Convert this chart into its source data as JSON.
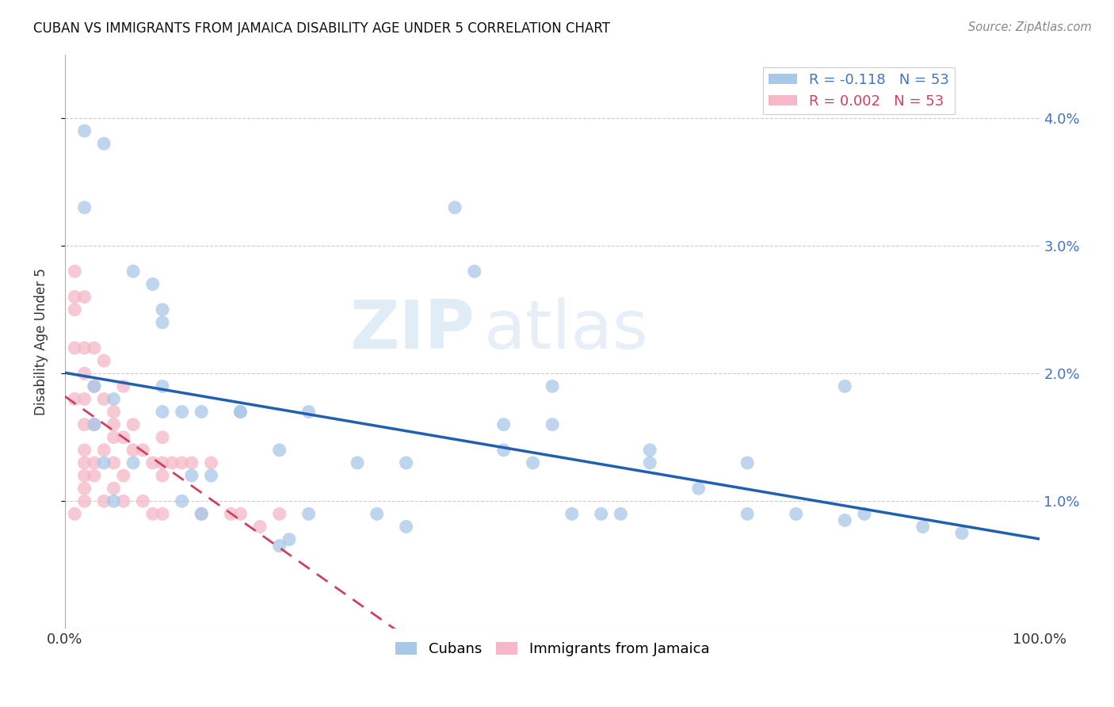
{
  "title": "CUBAN VS IMMIGRANTS FROM JAMAICA DISABILITY AGE UNDER 5 CORRELATION CHART",
  "source": "Source: ZipAtlas.com",
  "ylabel": "Disability Age Under 5",
  "xlim": [
    0,
    100
  ],
  "ylim": [
    0,
    0.045
  ],
  "ytick_vals": [
    0.01,
    0.02,
    0.03,
    0.04
  ],
  "ytick_labels": [
    "1.0%",
    "2.0%",
    "3.0%",
    "4.0%"
  ],
  "xtick_vals": [
    0,
    100
  ],
  "xtick_labels": [
    "0.0%",
    "100.0%"
  ],
  "watermark_zip": "ZIP",
  "watermark_atlas": "atlas",
  "legend1_label": "R = -0.118   N = 53",
  "legend2_label": "R = 0.002   N = 53",
  "legend_series1": "Cubans",
  "legend_series2": "Immigrants from Jamaica",
  "blue_color": "#a8c8e8",
  "pink_color": "#f4b8c8",
  "trendline_blue": "#2060b0",
  "trendline_pink": "#d04060",
  "cubans_x": [
    2,
    2,
    4,
    9,
    10,
    10,
    10,
    12,
    13,
    14,
    15,
    18,
    22,
    23,
    25,
    30,
    32,
    35,
    40,
    42,
    45,
    48,
    50,
    52,
    55,
    57,
    60,
    65,
    70,
    75,
    80,
    82,
    88,
    92,
    3,
    3,
    4,
    5,
    5,
    7,
    7,
    10,
    12,
    14,
    18,
    22,
    25,
    35,
    45,
    50,
    60,
    70,
    80
  ],
  "cubans_y": [
    0.039,
    0.033,
    0.038,
    0.027,
    0.025,
    0.019,
    0.017,
    0.017,
    0.012,
    0.009,
    0.012,
    0.017,
    0.014,
    0.007,
    0.009,
    0.013,
    0.009,
    0.008,
    0.033,
    0.028,
    0.014,
    0.013,
    0.016,
    0.009,
    0.009,
    0.009,
    0.014,
    0.011,
    0.013,
    0.009,
    0.019,
    0.009,
    0.008,
    0.0075,
    0.019,
    0.016,
    0.013,
    0.018,
    0.01,
    0.028,
    0.013,
    0.024,
    0.01,
    0.017,
    0.017,
    0.0065,
    0.017,
    0.013,
    0.016,
    0.019,
    0.013,
    0.009,
    0.0085
  ],
  "jamaica_x": [
    1,
    1,
    1,
    1,
    1,
    1,
    2,
    2,
    2,
    2,
    2,
    2,
    2,
    2,
    2,
    2,
    3,
    3,
    3,
    3,
    3,
    4,
    4,
    4,
    4,
    5,
    5,
    5,
    5,
    5,
    6,
    6,
    6,
    6,
    7,
    7,
    8,
    8,
    9,
    9,
    10,
    10,
    10,
    10,
    11,
    12,
    13,
    14,
    15,
    17,
    18,
    20,
    22
  ],
  "jamaica_y": [
    0.028,
    0.026,
    0.025,
    0.022,
    0.018,
    0.009,
    0.026,
    0.022,
    0.02,
    0.018,
    0.016,
    0.014,
    0.013,
    0.012,
    0.011,
    0.01,
    0.022,
    0.019,
    0.016,
    0.013,
    0.012,
    0.021,
    0.018,
    0.014,
    0.01,
    0.017,
    0.016,
    0.015,
    0.013,
    0.011,
    0.019,
    0.015,
    0.012,
    0.01,
    0.016,
    0.014,
    0.014,
    0.01,
    0.013,
    0.009,
    0.015,
    0.013,
    0.012,
    0.009,
    0.013,
    0.013,
    0.013,
    0.009,
    0.013,
    0.009,
    0.009,
    0.008,
    0.009
  ]
}
